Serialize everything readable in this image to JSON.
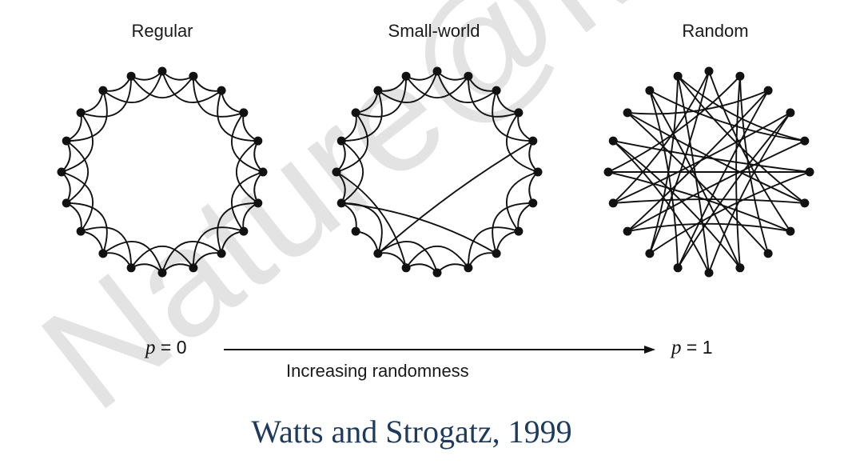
{
  "panels": [
    {
      "id": "regular",
      "title": "Regular"
    },
    {
      "id": "small_world",
      "title": "Small-world"
    },
    {
      "id": "random",
      "title": "Random"
    }
  ],
  "axis": {
    "left_p_symbol": "p",
    "left_p_value": "= 0",
    "right_p_symbol": "p",
    "right_p_value": "= 1",
    "label": "Increasing randomness"
  },
  "citation": "Watts and Strogatz, 1999",
  "watermark": "Nature@Mac",
  "colors": {
    "line": "#111111",
    "citation": "#1e3a5c",
    "watermark": "#e3e3e3"
  }
}
